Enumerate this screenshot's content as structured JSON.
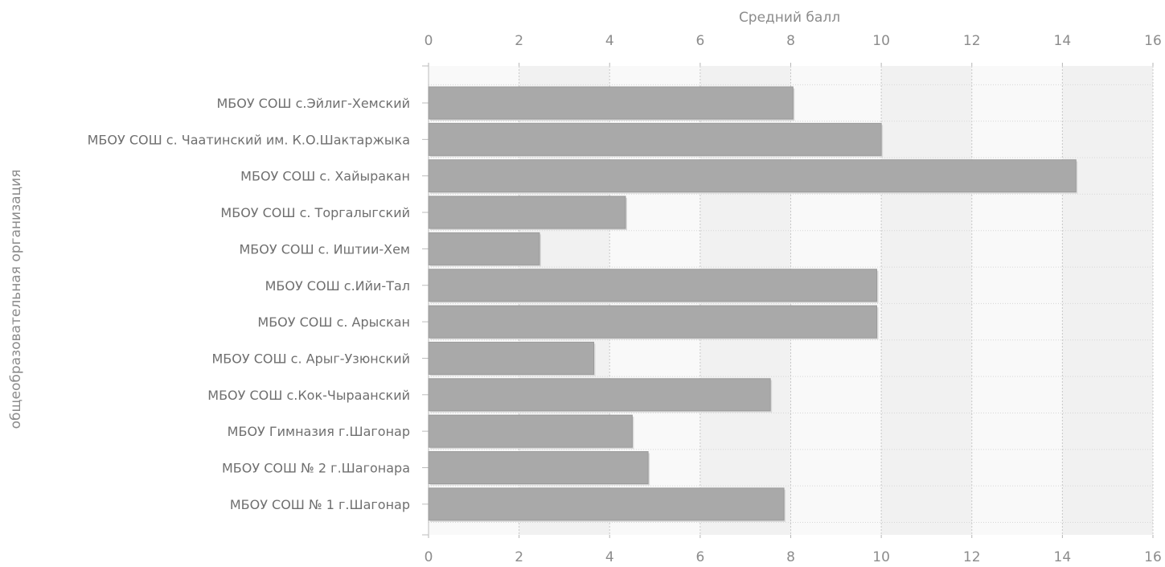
{
  "chart_data": {
    "type": "bar",
    "orientation": "horizontal",
    "title": "",
    "xlabel": "Средний балл",
    "ylabel": "общеобразовательная организация",
    "xlim": [
      0,
      16
    ],
    "x_ticks": [
      0,
      2,
      4,
      6,
      8,
      10,
      12,
      14,
      16
    ],
    "x_axis_position": "top and bottom",
    "grid": true,
    "legend": "none",
    "categories": [
      "МБОУ СОШ с.Эйлиг-Хемский",
      "МБОУ СОШ с. Чаатинский им. К.О.Шактаржыка",
      "МБОУ СОШ с. Хайыракан",
      "МБОУ СОШ с. Торгалыгский",
      "МБОУ СОШ с. Иштии-Хем",
      "МБОУ СОШ с.Ийи-Тал",
      "МБОУ СОШ с. Арыскан",
      "МБОУ СОШ с. Арыг-Узюнский",
      "МБОУ СОШ с.Кок-Чыраанский",
      "МБОУ Гимназия г.Шагонар",
      "МБОУ СОШ № 2 г.Шагонара",
      "МБОУ СОШ № 1 г.Шагонар"
    ],
    "values": [
      8.05,
      10.0,
      14.3,
      4.35,
      2.45,
      9.9,
      9.9,
      3.65,
      7.55,
      4.5,
      4.85,
      7.85
    ],
    "colors": {
      "bar": "#a9a9a9",
      "bar_edge": "#9b9b9b",
      "band_light": "#f9f9f9",
      "band_dark": "#f1f1f1",
      "grid": "#c8c8c8",
      "text": "#8c8c8c"
    }
  }
}
